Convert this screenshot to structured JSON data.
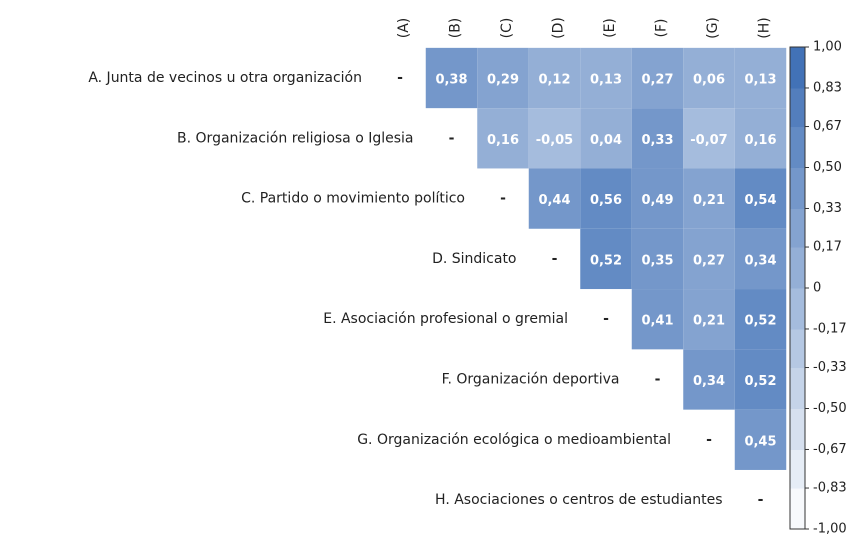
{
  "chart_data": {
    "type": "heatmap",
    "row_labels": [
      "A. Junta de vecinos u otra organización",
      "B. Organización religiosa o Iglesia",
      "C. Partido o movimiento político",
      "D. Sindicato",
      "E. Asociación profesional o gremial",
      "F. Organización deportiva",
      "G. Organización ecológica o medioambiental",
      "H. Asociaciones o centros de estudiantes"
    ],
    "column_labels": [
      "(A)",
      "(B)",
      "(C)",
      "(D)",
      "(E)",
      "(F)",
      "(G)",
      "(H)"
    ],
    "diagonal_label": "-",
    "values": [
      [
        null,
        0.38,
        0.29,
        0.12,
        0.13,
        0.27,
        0.06,
        0.13
      ],
      [
        null,
        null,
        0.16,
        -0.05,
        0.04,
        0.33,
        -0.07,
        0.16
      ],
      [
        null,
        null,
        null,
        0.44,
        0.56,
        0.49,
        0.21,
        0.54
      ],
      [
        null,
        null,
        null,
        null,
        0.52,
        0.35,
        0.27,
        0.34
      ],
      [
        null,
        null,
        null,
        null,
        null,
        0.41,
        0.21,
        0.52
      ],
      [
        null,
        null,
        null,
        null,
        null,
        null,
        0.34,
        0.52
      ],
      [
        null,
        null,
        null,
        null,
        null,
        null,
        null,
        0.45
      ],
      [
        null,
        null,
        null,
        null,
        null,
        null,
        null,
        null
      ]
    ],
    "value_labels": [
      [
        null,
        "0,38",
        "0,29",
        "0,12",
        "0,13",
        "0,27",
        "0,06",
        "0,13"
      ],
      [
        null,
        null,
        "0,16",
        "-0,05",
        "0,04",
        "0,33",
        "-0,07",
        "0,16"
      ],
      [
        null,
        null,
        null,
        "0,44",
        "0,56",
        "0,49",
        "0,21",
        "0,54"
      ],
      [
        null,
        null,
        null,
        null,
        "0,52",
        "0,35",
        "0,27",
        "0,34"
      ],
      [
        null,
        null,
        null,
        null,
        null,
        "0,41",
        "0,21",
        "0,52"
      ],
      [
        null,
        null,
        null,
        null,
        null,
        null,
        "0,34",
        "0,52"
      ],
      [
        null,
        null,
        null,
        null,
        null,
        null,
        null,
        "0,45"
      ],
      [
        null,
        null,
        null,
        null,
        null,
        null,
        null,
        null
      ]
    ],
    "colorscale": [
      "#ffffff",
      "#3a6cb4"
    ],
    "zlim": [
      -1,
      1
    ],
    "zticks": [
      {
        "value": 1,
        "label": "1,00"
      },
      {
        "value": 0.83,
        "label": "0,83"
      },
      {
        "value": 0.67,
        "label": "0,67"
      },
      {
        "value": 0.5,
        "label": "0,50"
      },
      {
        "value": 0.33,
        "label": "0,33"
      },
      {
        "value": 0.17,
        "label": "0,17"
      },
      {
        "value": 0,
        "label": "0"
      },
      {
        "value": -0.17,
        "label": "-0,17"
      },
      {
        "value": -0.33,
        "label": "-0,33"
      },
      {
        "value": -0.5,
        "label": "-0,50"
      },
      {
        "value": -0.67,
        "label": "-0,67"
      },
      {
        "value": -0.83,
        "label": "-0,83"
      },
      {
        "value": -1,
        "label": "-1,00"
      }
    ]
  }
}
